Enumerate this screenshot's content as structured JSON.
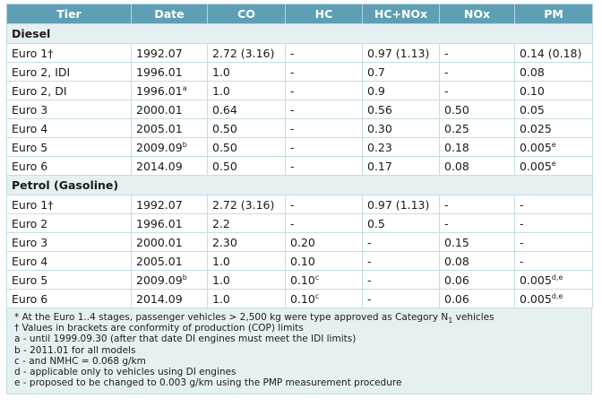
{
  "headers": [
    "Tier",
    "Date",
    "CO",
    "HC",
    "HC+NOx",
    "NOx",
    "PM"
  ],
  "sections": [
    {
      "title": "Diesel",
      "rows": [
        {
          "tier": "Euro 1†",
          "date": "1992.07",
          "date_sup": "",
          "co": "2.72 (3.16)",
          "hc": "-",
          "hc_sup": "",
          "hcnox": "0.97 (1.13)",
          "nox": "-",
          "pm": "0.14 (0.18)",
          "pm_sup": ""
        },
        {
          "tier": "Euro 2, IDI",
          "date": "1996.01",
          "date_sup": "",
          "co": "1.0",
          "hc": "-",
          "hc_sup": "",
          "hcnox": "0.7",
          "nox": "-",
          "pm": "0.08",
          "pm_sup": ""
        },
        {
          "tier": "Euro 2, DI",
          "date": "1996.01",
          "date_sup": "a",
          "co": "1.0",
          "hc": "-",
          "hc_sup": "",
          "hcnox": "0.9",
          "nox": "-",
          "pm": "0.10",
          "pm_sup": ""
        },
        {
          "tier": "Euro 3",
          "date": "2000.01",
          "date_sup": "",
          "co": "0.64",
          "hc": "-",
          "hc_sup": "",
          "hcnox": "0.56",
          "nox": "0.50",
          "pm": "0.05",
          "pm_sup": ""
        },
        {
          "tier": "Euro 4",
          "date": "2005.01",
          "date_sup": "",
          "co": "0.50",
          "hc": "-",
          "hc_sup": "",
          "hcnox": "0.30",
          "nox": "0.25",
          "pm": "0.025",
          "pm_sup": ""
        },
        {
          "tier": "Euro 5",
          "date": "2009.09",
          "date_sup": "b",
          "co": "0.50",
          "hc": "-",
          "hc_sup": "",
          "hcnox": "0.23",
          "nox": "0.18",
          "pm": "0.005",
          "pm_sup": "e"
        },
        {
          "tier": "Euro 6",
          "date": "2014.09",
          "date_sup": "",
          "co": "0.50",
          "hc": "-",
          "hc_sup": "",
          "hcnox": "0.17",
          "nox": "0.08",
          "pm": "0.005",
          "pm_sup": "e"
        }
      ]
    },
    {
      "title": "Petrol (Gasoline)",
      "rows": [
        {
          "tier": "Euro 1†",
          "date": "1992.07",
          "date_sup": "",
          "co": "2.72 (3.16)",
          "hc": "-",
          "hc_sup": "",
          "hcnox": "0.97 (1.13)",
          "nox": "-",
          "pm": "-",
          "pm_sup": ""
        },
        {
          "tier": "Euro 2",
          "date": "1996.01",
          "date_sup": "",
          "co": "2.2",
          "hc": "-",
          "hc_sup": "",
          "hcnox": "0.5",
          "nox": "-",
          "pm": "-",
          "pm_sup": ""
        },
        {
          "tier": "Euro 3",
          "date": "2000.01",
          "date_sup": "",
          "co": "2.30",
          "hc": "0.20",
          "hc_sup": "",
          "hcnox": "-",
          "nox": "0.15",
          "pm": "-",
          "pm_sup": ""
        },
        {
          "tier": "Euro 4",
          "date": "2005.01",
          "date_sup": "",
          "co": "1.0",
          "hc": "0.10",
          "hc_sup": "",
          "hcnox": "-",
          "nox": "0.08",
          "pm": "-",
          "pm_sup": ""
        },
        {
          "tier": "Euro 5",
          "date": "2009.09",
          "date_sup": "b",
          "co": "1.0",
          "hc": "0.10",
          "hc_sup": "c",
          "hcnox": "-",
          "nox": "0.06",
          "pm": "0.005",
          "pm_sup": "d,e"
        },
        {
          "tier": "Euro 6",
          "date": "2014.09",
          "date_sup": "",
          "co": "1.0",
          "hc": "0.10",
          "hc_sup": "c",
          "hcnox": "-",
          "nox": "0.06",
          "pm": "0.005",
          "pm_sup": "d,e"
        }
      ]
    }
  ],
  "notes": {
    "note_star_prefix": "* At the Euro 1..4 stages, passenger vehicles > 2,500 kg were type approved as Category N",
    "note_star_sub": "1",
    "note_star_suffix": " vehicles",
    "note_dagger": "† Values in brackets are conformity of production (COP) limits",
    "note_a": "a - until 1999.09.30 (after that date DI engines must meet the IDI limits)",
    "note_b": "b - 2011.01 for all models",
    "note_c": "c - and NMHC = 0.068 g/km",
    "note_d": "d - applicable only to vehicles using DI engines",
    "note_e": "e - proposed to be changed to 0.003 g/km using the PMP measurement procedure"
  }
}
